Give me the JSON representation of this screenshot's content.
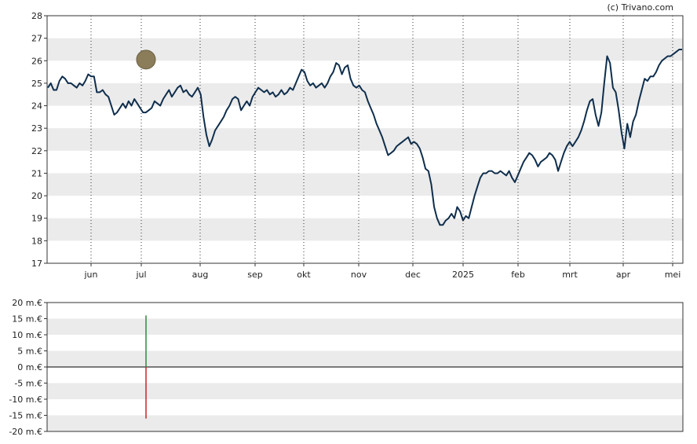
{
  "credit": "(c) Trivano.com",
  "chart_data": [
    {
      "type": "line",
      "title": "",
      "xlabel": "",
      "ylabel": "",
      "ylim": [
        17,
        28
      ],
      "grid": "alternating horizontal bands, dotted vertical month lines",
      "y_ticks": [
        "17",
        "18",
        "19",
        "20",
        "21",
        "22",
        "23",
        "24",
        "25",
        "26",
        "27",
        "28"
      ],
      "x_ticks": [
        "jun",
        "jul",
        "aug",
        "sep",
        "okt",
        "nov",
        "dec",
        "2025",
        "feb",
        "mrt",
        "apr",
        "mei"
      ],
      "line_color": "#0f2e4c",
      "marker": {
        "x": "jul",
        "y": 26.05,
        "color": "#8b7d5a"
      },
      "series": [
        {
          "values": [
            24.8,
            25.0,
            24.7,
            24.7,
            25.1,
            25.3,
            25.2,
            25.0,
            25.0,
            24.9,
            24.8,
            25.0,
            24.9,
            25.1,
            25.4,
            25.3,
            25.3,
            24.6,
            24.6,
            24.7,
            24.5,
            24.4,
            24.0,
            23.6,
            23.7,
            23.9,
            24.1,
            23.9,
            24.2,
            24.0,
            24.3,
            24.1,
            23.9,
            23.7,
            23.7,
            23.8,
            23.9,
            24.2,
            24.1,
            24.0,
            24.3,
            24.5,
            24.7,
            24.4,
            24.6,
            24.8,
            24.9,
            24.6,
            24.7,
            24.5,
            24.4,
            24.6,
            24.8,
            24.5,
            23.5,
            22.7,
            22.2,
            22.5,
            22.9,
            23.1,
            23.3,
            23.5,
            23.8,
            24.0,
            24.3,
            24.4,
            24.3,
            23.8,
            24.0,
            24.2,
            24.0,
            24.4,
            24.6,
            24.8,
            24.7,
            24.6,
            24.7,
            24.5,
            24.6,
            24.4,
            24.5,
            24.7,
            24.5,
            24.6,
            24.8,
            24.7,
            25.0,
            25.3,
            25.6,
            25.5,
            25.1,
            24.9,
            25.0,
            24.8,
            24.9,
            25.0,
            24.8,
            25.0,
            25.3,
            25.5,
            25.9,
            25.8,
            25.4,
            25.7,
            25.8,
            25.2,
            24.9,
            24.8,
            24.9,
            24.7,
            24.6,
            24.2,
            23.9,
            23.6,
            23.2,
            22.9,
            22.6,
            22.2,
            21.8,
            21.9,
            22.0,
            22.2,
            22.3,
            22.4,
            22.5,
            22.6,
            22.3,
            22.4,
            22.3,
            22.1,
            21.7,
            21.2,
            21.1,
            20.5,
            19.5,
            19.0,
            18.7,
            18.7,
            18.9,
            19.0,
            19.2,
            19.0,
            19.5,
            19.3,
            18.9,
            19.1,
            19.0,
            19.5,
            20.0,
            20.4,
            20.8,
            21.0,
            21.0,
            21.1,
            21.1,
            21.0,
            21.0,
            21.1,
            21.0,
            20.9,
            21.1,
            20.8,
            20.6,
            20.9,
            21.2,
            21.5,
            21.7,
            21.9,
            21.8,
            21.6,
            21.3,
            21.5,
            21.6,
            21.7,
            21.9,
            21.8,
            21.6,
            21.1,
            21.5,
            21.9,
            22.2,
            22.4,
            22.2,
            22.4,
            22.6,
            22.9,
            23.3,
            23.8,
            24.2,
            24.3,
            23.6,
            23.1,
            23.7,
            25.0,
            26.2,
            25.9,
            24.8,
            24.6,
            23.8,
            22.8,
            22.1,
            23.2,
            22.6,
            23.3,
            23.6,
            24.2,
            24.7,
            25.2,
            25.1,
            25.3,
            25.3,
            25.5,
            25.8,
            26.0,
            26.1,
            26.2,
            26.2,
            26.3,
            26.4,
            26.5,
            26.5
          ]
        }
      ]
    },
    {
      "type": "bar",
      "title": "",
      "xlabel": "",
      "ylabel": "",
      "ylim": [
        -20,
        20
      ],
      "y_ticks": [
        "20 m.€",
        "15 m.€",
        "10 m.€",
        "5 m.€",
        "0 m.€",
        "-5 m.€",
        "-10 m.€",
        "-15 m.€",
        "-20 m.€"
      ],
      "grid": "alternating horizontal bands",
      "bars": [
        {
          "x": "jul",
          "value": 16,
          "color": "#2e8b3a"
        },
        {
          "x": "jul",
          "value": -16,
          "color": "#cc2222"
        }
      ]
    }
  ]
}
